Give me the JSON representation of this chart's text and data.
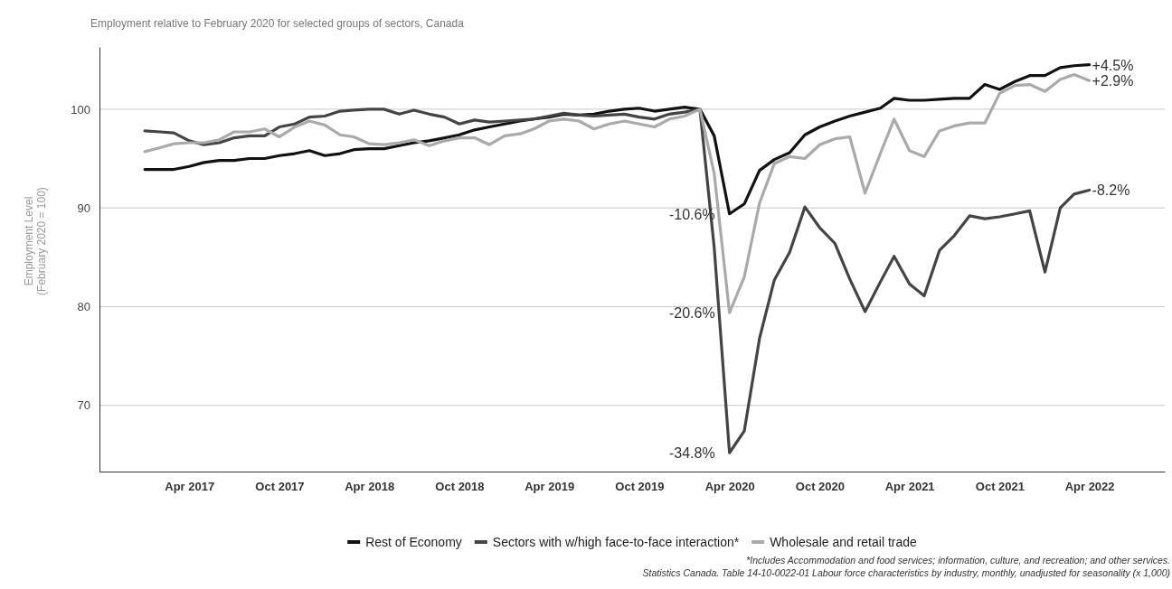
{
  "chart_data": {
    "type": "line",
    "title": "Employment relative to February 2020 for selected groups of sectors, Canada",
    "ylabel": "Employment Level\n(February 2020 = 100)",
    "x": [
      "2017-01",
      "2017-02",
      "2017-03",
      "2017-04",
      "2017-05",
      "2017-06",
      "2017-07",
      "2017-08",
      "2017-09",
      "2017-10",
      "2017-11",
      "2017-12",
      "2018-01",
      "2018-02",
      "2018-03",
      "2018-04",
      "2018-05",
      "2018-06",
      "2018-07",
      "2018-08",
      "2018-09",
      "2018-10",
      "2018-11",
      "2018-12",
      "2019-01",
      "2019-02",
      "2019-03",
      "2019-04",
      "2019-05",
      "2019-06",
      "2019-07",
      "2019-08",
      "2019-09",
      "2019-10",
      "2019-11",
      "2019-12",
      "2020-01",
      "2020-02",
      "2020-03",
      "2020-04",
      "2020-05",
      "2020-06",
      "2020-07",
      "2020-08",
      "2020-09",
      "2020-10",
      "2020-11",
      "2020-12",
      "2021-01",
      "2021-02",
      "2021-03",
      "2021-04",
      "2021-05",
      "2021-06",
      "2021-07",
      "2021-08",
      "2021-09",
      "2021-10",
      "2021-11",
      "2021-12",
      "2022-01",
      "2022-02",
      "2022-03",
      "2022-04"
    ],
    "series": [
      {
        "name": "Rest of Economy",
        "color": "#111111",
        "values": [
          93.9,
          93.9,
          93.9,
          94.2,
          94.6,
          94.8,
          94.8,
          95.0,
          95.0,
          95.3,
          95.5,
          95.8,
          95.3,
          95.5,
          95.9,
          96.0,
          96.0,
          96.3,
          96.6,
          96.8,
          97.1,
          97.4,
          97.9,
          98.2,
          98.5,
          98.8,
          99.0,
          99.2,
          99.5,
          99.4,
          99.5,
          99.8,
          100.0,
          100.1,
          99.8,
          100.0,
          100.2,
          100.0,
          97.3,
          89.4,
          90.4,
          93.8,
          94.9,
          95.6,
          97.4,
          98.2,
          98.8,
          99.3,
          99.7,
          100.1,
          101.1,
          100.9,
          100.9,
          101.0,
          101.1,
          101.1,
          102.5,
          102.0,
          102.8,
          103.4,
          103.4,
          104.2,
          104.4,
          104.5
        ]
      },
      {
        "name": "Sectors with w/high face-to-face interaction*",
        "color": "#444444",
        "values": [
          97.8,
          97.7,
          97.6,
          96.8,
          96.4,
          96.6,
          97.1,
          97.3,
          97.3,
          98.2,
          98.5,
          99.2,
          99.3,
          99.8,
          99.9,
          100.0,
          100.0,
          99.5,
          99.9,
          99.5,
          99.2,
          98.5,
          98.9,
          98.7,
          98.8,
          98.9,
          99.0,
          99.3,
          99.6,
          99.4,
          99.3,
          99.4,
          99.5,
          99.2,
          99.0,
          99.5,
          99.7,
          100.0,
          86.0,
          65.2,
          67.4,
          76.8,
          82.7,
          85.5,
          90.1,
          88.0,
          86.4,
          82.8,
          79.5,
          82.5,
          85.1,
          82.3,
          81.1,
          85.7,
          87.2,
          89.2,
          88.9,
          89.1,
          89.4,
          89.7,
          83.5,
          90.0,
          91.4,
          91.8
        ]
      },
      {
        "name": "Wholesale and retail trade",
        "color": "#aaaaaa",
        "values": [
          95.7,
          96.1,
          96.5,
          96.6,
          96.6,
          96.9,
          97.7,
          97.7,
          98.0,
          97.2,
          98.2,
          98.8,
          98.4,
          97.4,
          97.2,
          96.5,
          96.4,
          96.6,
          96.9,
          96.3,
          96.8,
          97.1,
          97.1,
          96.4,
          97.3,
          97.5,
          98.0,
          98.8,
          99.0,
          98.8,
          98.0,
          98.5,
          98.8,
          98.5,
          98.2,
          99.0,
          99.3,
          100.0,
          93.5,
          79.4,
          83.0,
          90.5,
          94.5,
          95.2,
          95.0,
          96.4,
          97.0,
          97.2,
          91.5,
          95.5,
          99.0,
          95.8,
          95.2,
          97.8,
          98.3,
          98.6,
          98.6,
          101.6,
          102.4,
          102.5,
          101.8,
          103.0,
          103.5,
          102.9
        ]
      }
    ],
    "xlim": [
      "2016-10",
      "2022-09"
    ],
    "xticks": [
      {
        "value": "2017-04",
        "label": "Apr 2017"
      },
      {
        "value": "2017-10",
        "label": "Oct 2017"
      },
      {
        "value": "2018-04",
        "label": "Apr 2018"
      },
      {
        "value": "2018-10",
        "label": "Oct 2018"
      },
      {
        "value": "2019-04",
        "label": "Apr 2019"
      },
      {
        "value": "2019-10",
        "label": "Oct 2019"
      },
      {
        "value": "2020-04",
        "label": "Apr 2020"
      },
      {
        "value": "2020-10",
        "label": "Oct 2020"
      },
      {
        "value": "2021-04",
        "label": "Apr 2021"
      },
      {
        "value": "2021-10",
        "label": "Oct 2021"
      },
      {
        "value": "2022-04",
        "label": "Apr 2022"
      }
    ],
    "ylim": [
      63.3,
      106.3
    ],
    "yticks": [
      70,
      80,
      90,
      100
    ],
    "grid": "y",
    "legend": "bottom",
    "line_style": "solid",
    "marker": "none",
    "annotations": [
      {
        "text": "-10.6%",
        "x": "2020-04",
        "y": 89.4
      },
      {
        "text": "-20.6%",
        "x": "2020-04",
        "y": 79.4
      },
      {
        "text": "-34.8%",
        "x": "2020-04",
        "y": 65.2
      },
      {
        "text": "+4.5%",
        "x": "2022-04",
        "y": 104.5
      },
      {
        "text": "+2.9%",
        "x": "2022-04",
        "y": 102.9
      },
      {
        "text": "-8.2%",
        "x": "2022-04",
        "y": 91.8
      },
      "*Includes Accommodation and food services; information, culture, and recreation; and other services.",
      "Statistics Canada. Table 14-10-0022-01  Labour force characteristics by industry, monthly, unadjusted for seasonality (x 1,000)"
    ]
  }
}
